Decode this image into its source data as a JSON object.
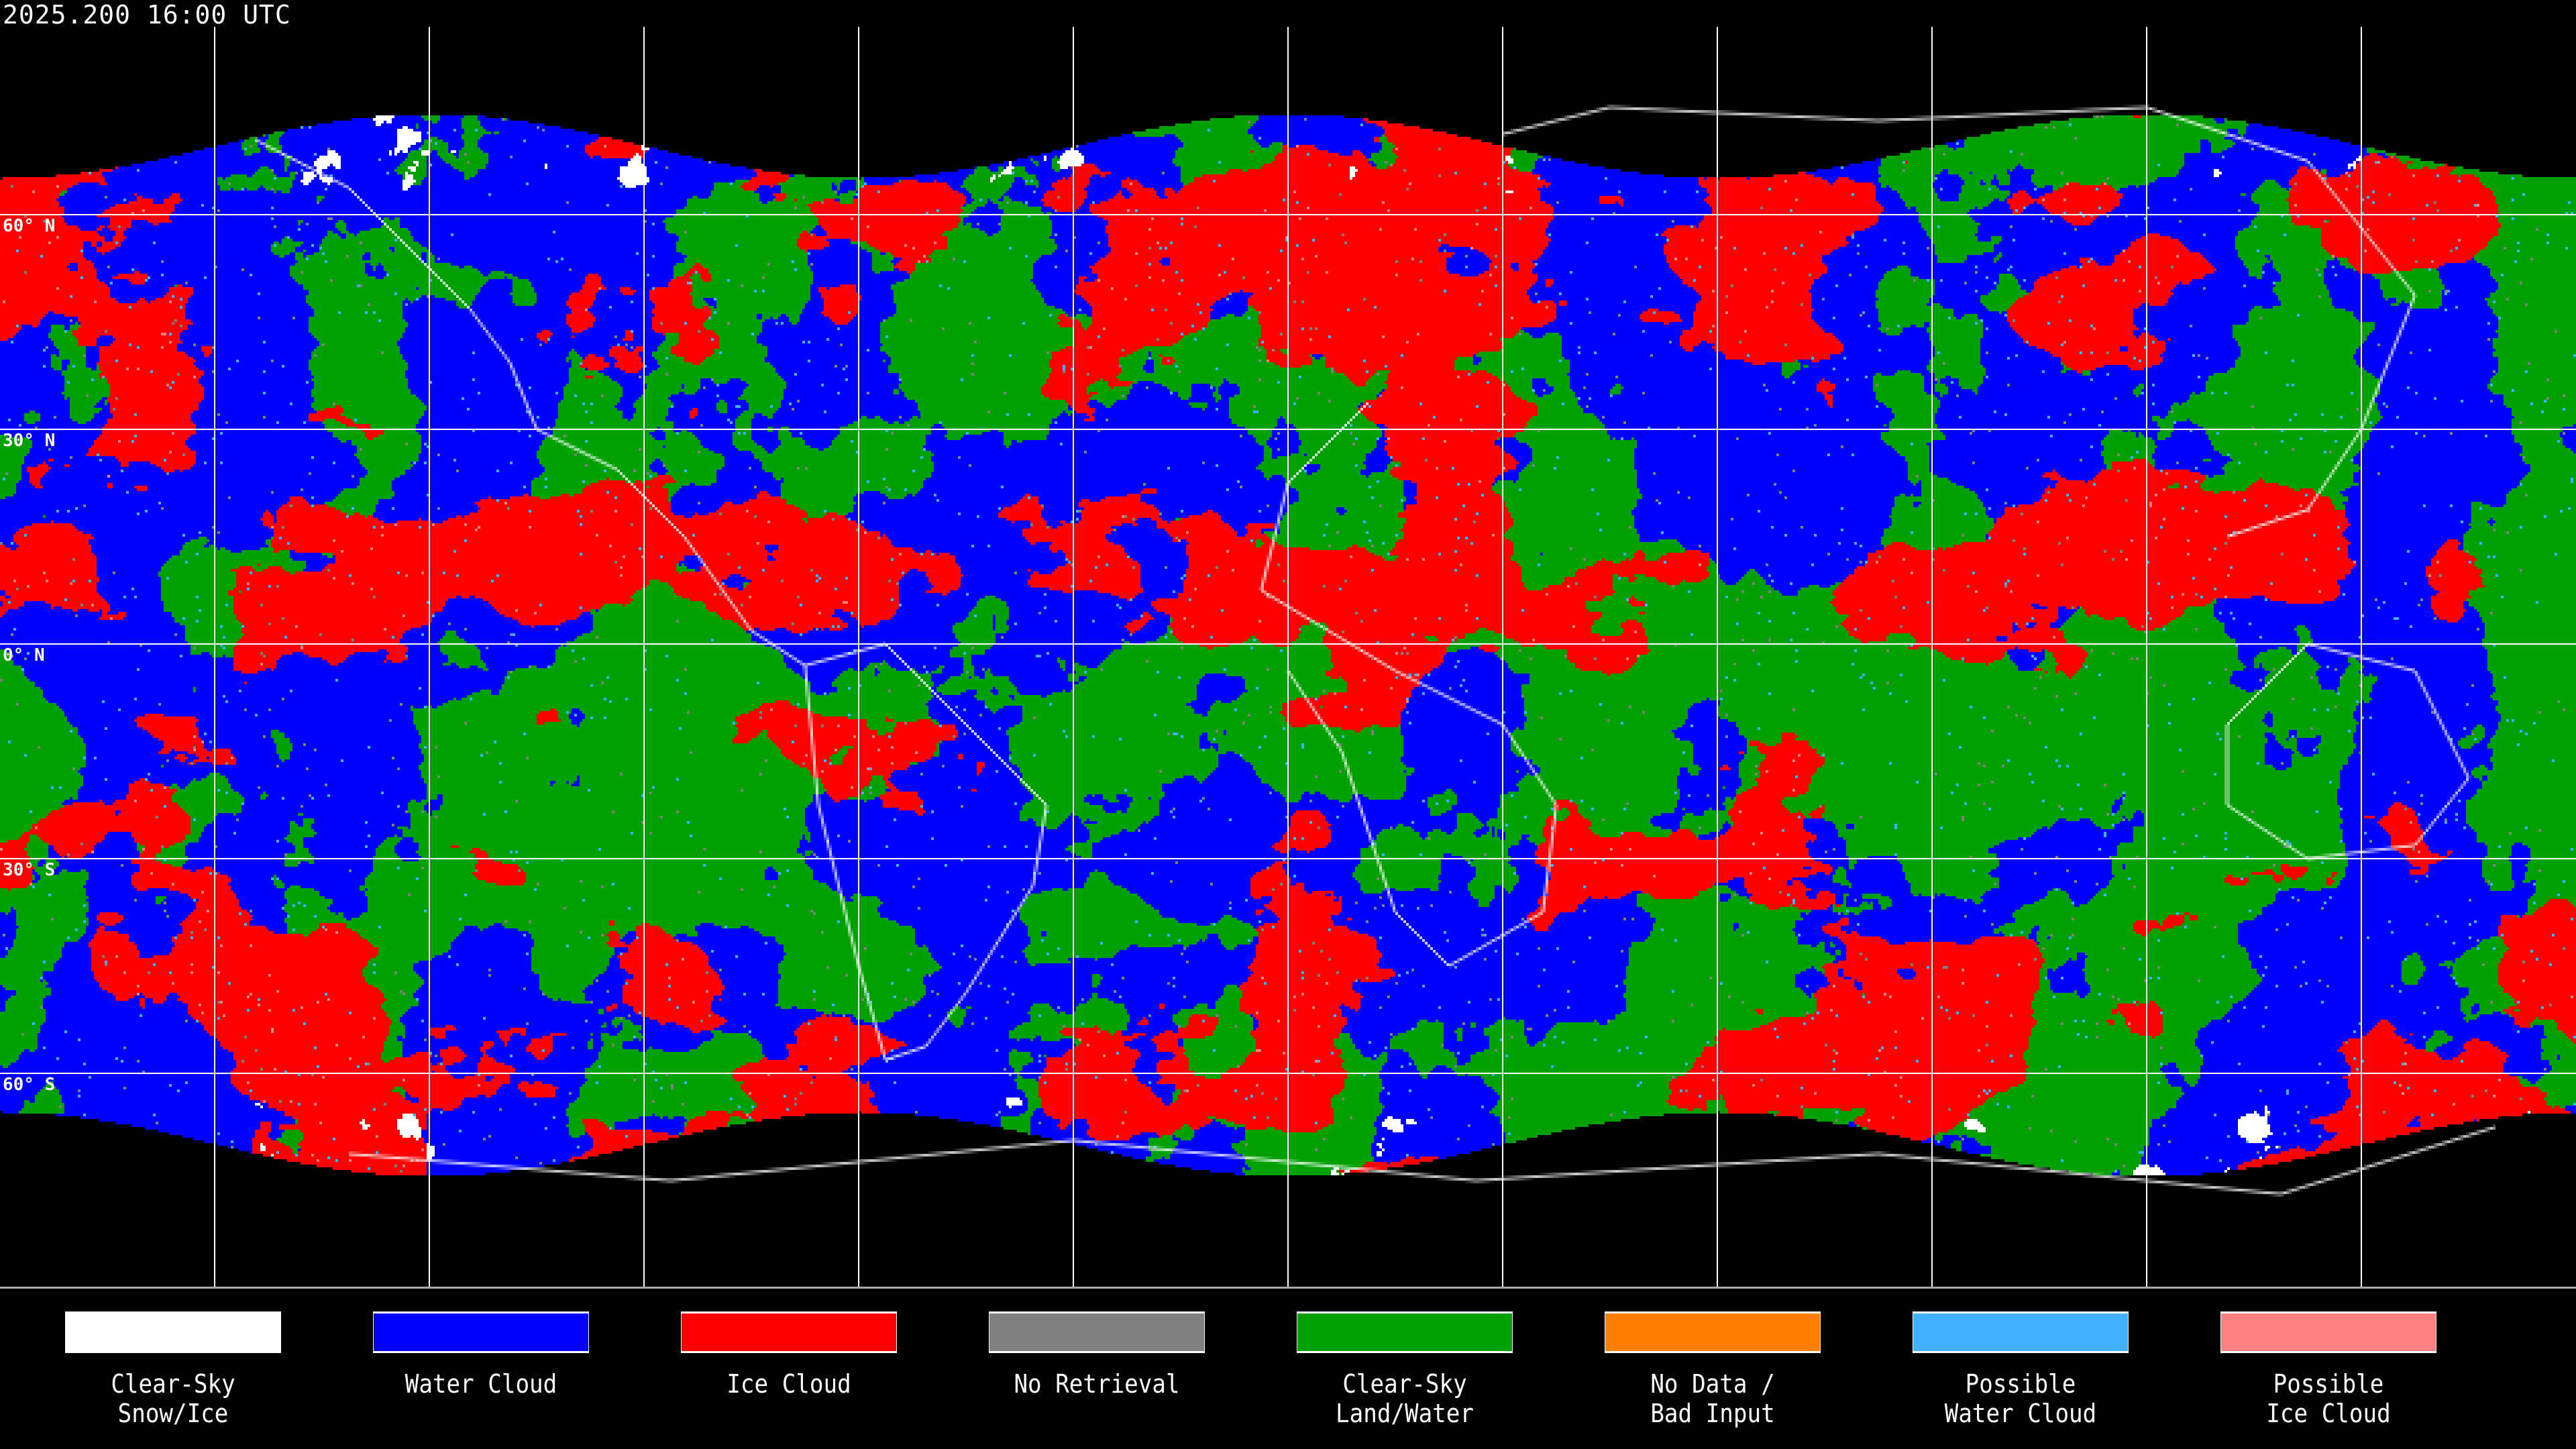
{
  "title": "2025.200 16:00 UTC",
  "map": {
    "projection": "equirectangular",
    "grid_spacing_degrees": 30,
    "latitude_labels": [
      "60° N",
      "30° N",
      "0° N",
      "30° S",
      "60° S"
    ],
    "coastlines": true
  },
  "legend": [
    {
      "label": "Clear-Sky\nSnow/Ice",
      "color": "#ffffff"
    },
    {
      "label": "Water Cloud",
      "color": "#0000ff"
    },
    {
      "label": "Ice Cloud",
      "color": "#ff0000"
    },
    {
      "label": "No Retrieval",
      "color": "#808080"
    },
    {
      "label": "Clear-Sky\nLand/Water",
      "color": "#00a000"
    },
    {
      "label": "No Data /\nBad Input",
      "color": "#ff8000"
    },
    {
      "label": "Possible\nWater Cloud",
      "color": "#40b0ff"
    },
    {
      "label": "Possible\nIce Cloud",
      "color": "#ff8080"
    }
  ]
}
